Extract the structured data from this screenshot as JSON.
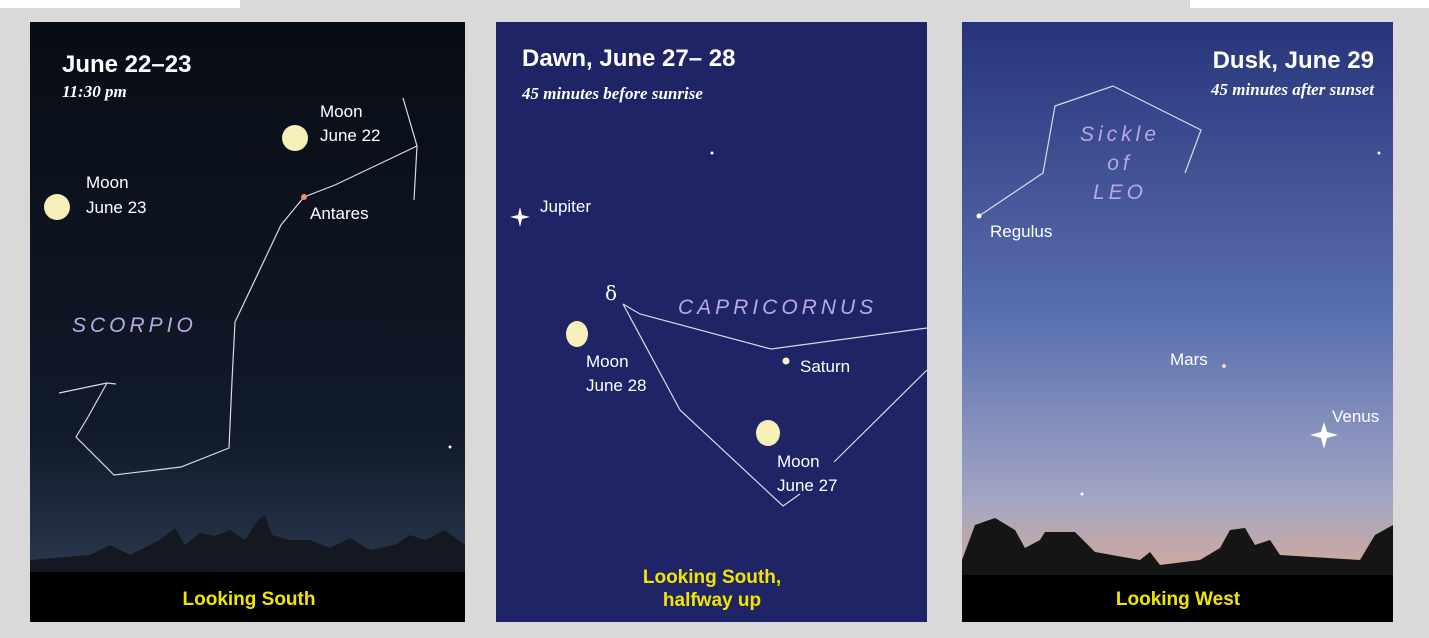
{
  "panels": [
    {
      "title": "June 22–23",
      "subtitle": "11:30 pm",
      "labels": [
        {
          "lines": [
            "Moon",
            "June 22"
          ]
        },
        {
          "lines": [
            "Moon",
            "June 23"
          ]
        },
        {
          "lines": [
            "Antares"
          ]
        }
      ],
      "constellation": [
        "SCORPIO"
      ],
      "direction": [
        "Looking South"
      ]
    },
    {
      "title": "Dawn, June 27– 28",
      "subtitle": "45 minutes before sunrise",
      "labels": [
        {
          "lines": [
            "Jupiter"
          ]
        },
        {
          "lines": [
            "δ"
          ]
        },
        {
          "lines": [
            "Saturn"
          ]
        },
        {
          "lines": [
            "Moon",
            "June 28"
          ]
        },
        {
          "lines": [
            "Moon",
            "June 27"
          ]
        }
      ],
      "constellation": [
        "CAPRICORNUS"
      ],
      "direction": [
        "Looking South,",
        "halfway up"
      ]
    },
    {
      "title": "Dusk, June 29",
      "subtitle": "45 minutes after sunset",
      "labels": [
        {
          "lines": [
            "Regulus"
          ]
        },
        {
          "lines": [
            "Mars"
          ]
        },
        {
          "lines": [
            "Venus"
          ]
        }
      ],
      "constellation": [
        "Sickle",
        "of",
        "LEO"
      ],
      "direction": [
        "Looking West"
      ]
    }
  ]
}
